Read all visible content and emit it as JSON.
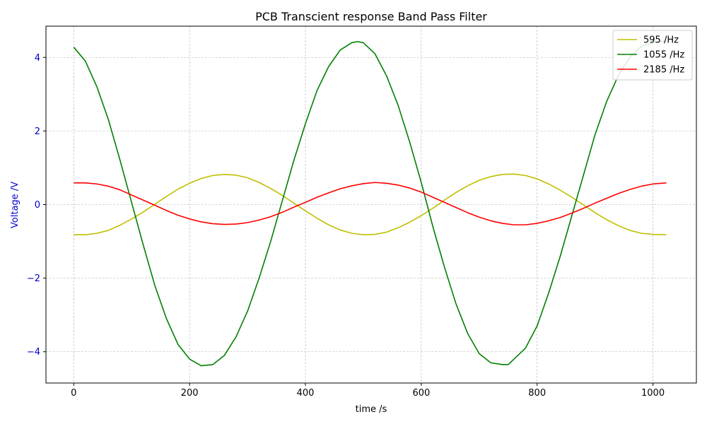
{
  "chart_data": {
    "type": "line",
    "title": "PCB Transcient response Band Pass Filter",
    "xlabel": "time /s",
    "ylabel": "Voltage /V",
    "ylabel_color": "#0000cc",
    "xlim": [
      -48,
      1075
    ],
    "ylim": [
      -4.85,
      4.85
    ],
    "xticks": [
      0,
      200,
      400,
      600,
      800,
      1000
    ],
    "yticks": [
      -4,
      -2,
      0,
      2,
      4
    ],
    "ytick_labels": [
      "−4",
      "−2",
      "0",
      "2",
      "4"
    ],
    "grid": true,
    "legend_position": "top-right",
    "series": [
      {
        "name": "595 /Hz",
        "color": "#bfbf00",
        "x": [
          0,
          20,
          40,
          60,
          80,
          100,
          120,
          140,
          160,
          180,
          200,
          220,
          240,
          260,
          280,
          300,
          320,
          340,
          360,
          380,
          400,
          420,
          440,
          460,
          480,
          500,
          520,
          540,
          560,
          580,
          600,
          620,
          640,
          660,
          680,
          700,
          720,
          740,
          760,
          780,
          800,
          820,
          840,
          860,
          880,
          900,
          920,
          940,
          960,
          980,
          1000,
          1023
        ],
        "y": [
          -0.82,
          -0.82,
          -0.78,
          -0.7,
          -0.56,
          -0.39,
          -0.2,
          0.01,
          0.22,
          0.42,
          0.58,
          0.71,
          0.79,
          0.82,
          0.8,
          0.73,
          0.6,
          0.44,
          0.25,
          0.04,
          -0.17,
          -0.37,
          -0.55,
          -0.69,
          -0.78,
          -0.82,
          -0.81,
          -0.75,
          -0.63,
          -0.48,
          -0.3,
          -0.1,
          0.12,
          0.33,
          0.51,
          0.66,
          0.76,
          0.82,
          0.83,
          0.79,
          0.7,
          0.56,
          0.39,
          0.2,
          -0.01,
          -0.22,
          -0.41,
          -0.57,
          -0.7,
          -0.78,
          -0.81,
          -0.82
        ]
      },
      {
        "name": "1055 /Hz",
        "color": "#008000",
        "x": [
          0,
          20,
          40,
          60,
          80,
          100,
          120,
          140,
          160,
          180,
          200,
          220,
          240,
          260,
          280,
          300,
          320,
          340,
          360,
          380,
          400,
          420,
          440,
          460,
          480,
          490,
          500,
          520,
          540,
          560,
          580,
          600,
          620,
          640,
          660,
          680,
          700,
          720,
          740,
          750,
          760,
          780,
          800,
          820,
          840,
          860,
          880,
          900,
          920,
          940,
          960,
          980,
          1000,
          1023
        ],
        "y": [
          4.28,
          3.9,
          3.2,
          2.3,
          1.2,
          0.05,
          -1.1,
          -2.2,
          -3.1,
          -3.8,
          -4.2,
          -4.38,
          -4.35,
          -4.1,
          -3.6,
          -2.9,
          -2.0,
          -1.0,
          0.1,
          1.2,
          2.2,
          3.1,
          3.75,
          4.2,
          4.4,
          4.43,
          4.4,
          4.1,
          3.5,
          2.7,
          1.7,
          0.6,
          -0.6,
          -1.7,
          -2.7,
          -3.5,
          -4.05,
          -4.3,
          -4.35,
          -4.35,
          -4.2,
          -3.9,
          -3.3,
          -2.4,
          -1.4,
          -0.3,
          0.8,
          1.9,
          2.8,
          3.5,
          4.0,
          4.3,
          4.4,
          4.45
        ]
      },
      {
        "name": "2185 /Hz",
        "color": "#ff0000",
        "x": [
          0,
          20,
          40,
          60,
          80,
          100,
          120,
          140,
          160,
          180,
          200,
          220,
          240,
          260,
          280,
          300,
          320,
          340,
          360,
          380,
          400,
          420,
          440,
          460,
          480,
          500,
          520,
          540,
          560,
          580,
          600,
          620,
          640,
          660,
          680,
          700,
          720,
          740,
          760,
          780,
          800,
          820,
          840,
          860,
          880,
          900,
          920,
          940,
          960,
          980,
          1000,
          1023
        ],
        "y": [
          0.59,
          0.59,
          0.56,
          0.5,
          0.4,
          0.26,
          0.12,
          -0.02,
          -0.16,
          -0.29,
          -0.39,
          -0.47,
          -0.52,
          -0.54,
          -0.53,
          -0.49,
          -0.42,
          -0.33,
          -0.21,
          -0.07,
          0.06,
          0.2,
          0.32,
          0.43,
          0.51,
          0.57,
          0.6,
          0.58,
          0.53,
          0.45,
          0.34,
          0.2,
          0.06,
          -0.08,
          -0.22,
          -0.34,
          -0.44,
          -0.51,
          -0.55,
          -0.55,
          -0.51,
          -0.44,
          -0.35,
          -0.23,
          -0.1,
          0.04,
          0.17,
          0.3,
          0.41,
          0.5,
          0.56,
          0.59
        ]
      }
    ]
  }
}
